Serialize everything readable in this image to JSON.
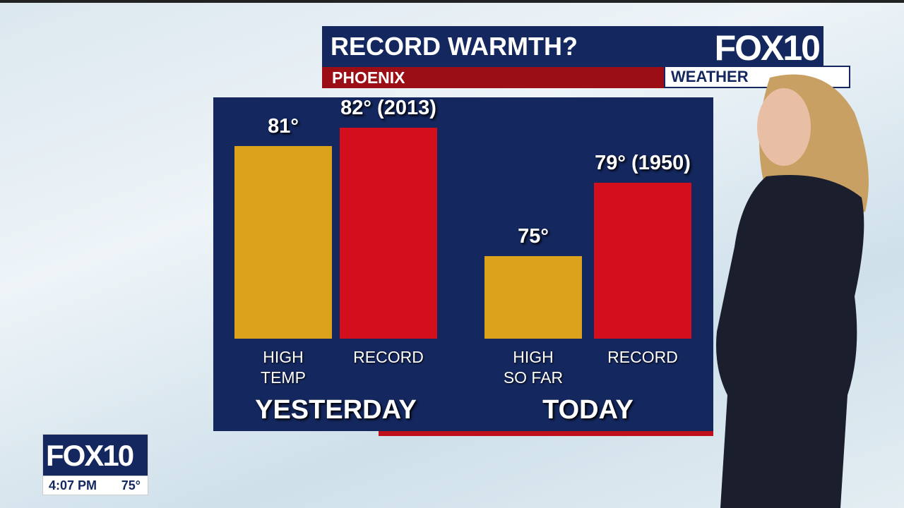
{
  "header": {
    "title": "RECORD WARMTH?",
    "location": "PHOENIX",
    "logo": "FOX10",
    "logo_sub": "WEATHER"
  },
  "chart_data": {
    "type": "bar",
    "groups": [
      "YESTERDAY",
      "TODAY"
    ],
    "categories": [
      "HIGH TEMP",
      "RECORD",
      "HIGH SO FAR",
      "RECORD"
    ],
    "values": [
      81,
      82,
      75,
      79
    ],
    "value_labels": [
      "81°",
      "82° (2013)",
      "75°",
      "79° (1950)"
    ],
    "colors": [
      "#dca21b",
      "#d40f1d",
      "#dca21b",
      "#d40f1d"
    ]
  },
  "bug": {
    "logo": "FOX10",
    "time": "4:07 PM",
    "temp": "75°"
  }
}
